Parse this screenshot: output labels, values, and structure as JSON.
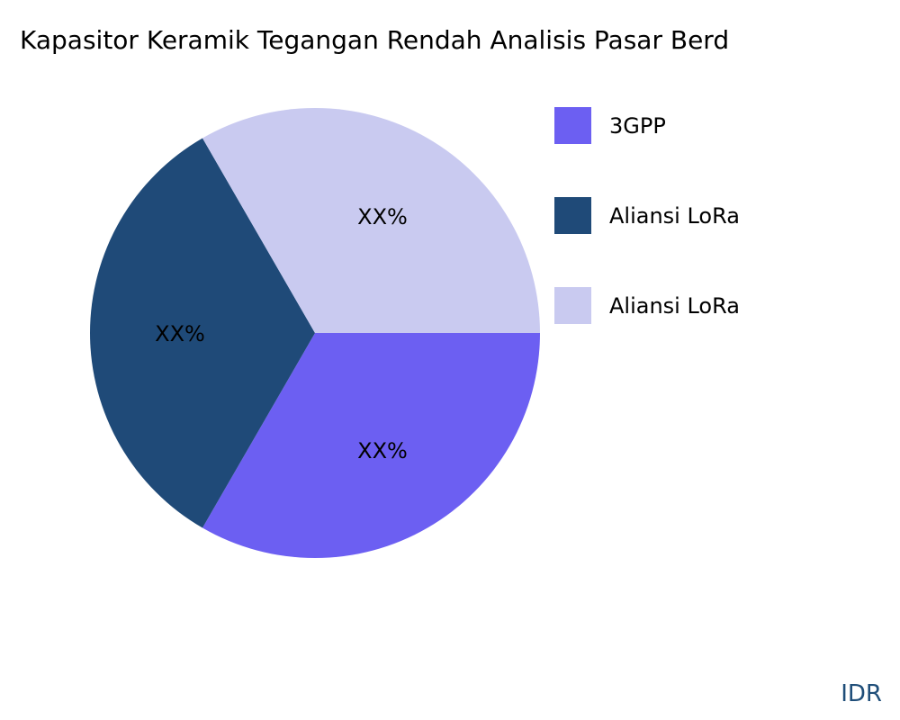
{
  "chart_data": {
    "type": "pie",
    "title": "Kapasitor Keramik Tegangan Rendah Analisis Pasar Berd",
    "slices": [
      {
        "name": "3GPP",
        "value": 33.33,
        "label": "XX%",
        "color": "#6c5ff2"
      },
      {
        "name": "Aliansi LoRa",
        "value": 33.33,
        "label": "XX%",
        "color": "#1f4a78"
      },
      {
        "name": "Aliansi LoRa",
        "value": 33.33,
        "label": "XX%",
        "color": "#c9caf0"
      }
    ],
    "legend_position": "right"
  },
  "brand": "IDR"
}
